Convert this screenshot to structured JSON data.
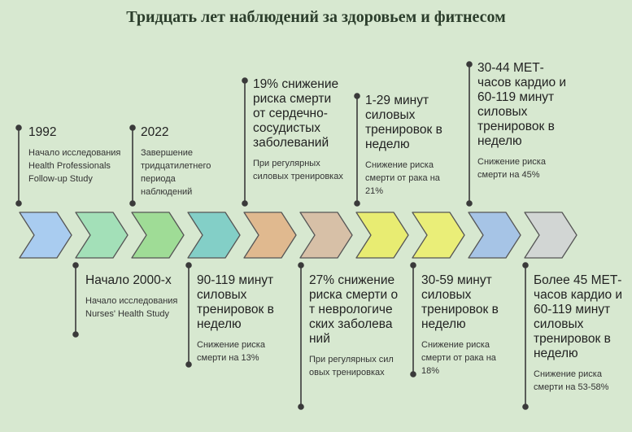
{
  "title": "Тридцать лет наблюдений за здоровьем и фитнесом",
  "colors": {
    "background": "#d7e8d0",
    "chevrons": [
      "#a9ccf0",
      "#a3e0b8",
      "#9fdc96",
      "#83cfc7",
      "#e0b98f",
      "#d7c0a7",
      "#e8ec72",
      "#eaee78",
      "#a6c4e6",
      "#d2d6d4"
    ]
  },
  "events": [
    {
      "head": "1992",
      "desc": "Начало исследования Health Professionals Follow-up Study"
    },
    {
      "head": "Начало 2000-х",
      "desc": "Начало исследования Nurses' Health Study"
    },
    {
      "head": "2022",
      "desc": "Завершение тридцатилетнего периода наблюдений"
    },
    {
      "head": "90-119 минут силовых тренировок в неделю",
      "desc": "Снижение риска смерти на 13%"
    },
    {
      "head": "19% снижение риска смерти от сердечно-сосудистых заболеваний",
      "desc": "При регулярных силовых тренировках"
    },
    {
      "head": "27% снижение риска смерти от неврологических заболеваний",
      "desc": "При регулярных силовых тренировках"
    },
    {
      "head": "1-29 минут силовых тренировок в неделю",
      "desc": "Снижение риска смерти от рака на 21%"
    },
    {
      "head": "30-59 минут силовых тренировок в неделю",
      "desc": "Снижение риска смерти от рака на 18%"
    },
    {
      "head": "30-44 МЕТ-часов кардио и 60-119 минут силовых тренировок в неделю",
      "desc": "Снижение риска смерти на 45%"
    },
    {
      "head": "Более 45 МЕТ-часов кардио и 60-119 минут силовых тренировок в неделю",
      "desc": "Снижение риска смерти на 53-58%"
    }
  ]
}
